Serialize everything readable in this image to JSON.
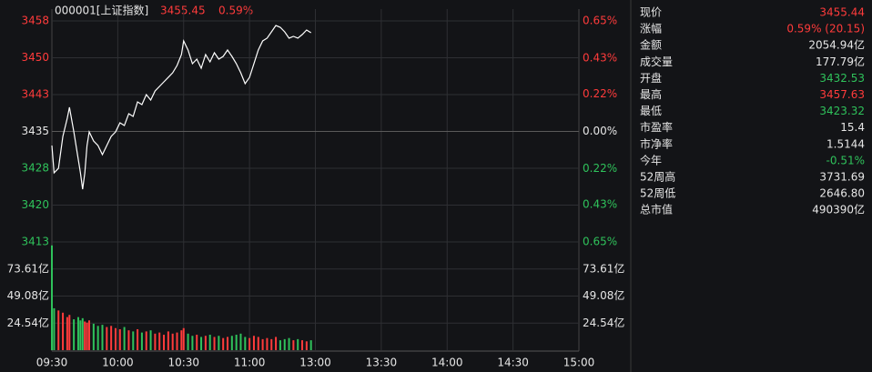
{
  "chart_data": {
    "type": "intraday",
    "header": {
      "name": "000001[上证指数]",
      "price": "3455.45",
      "change": "0.59%"
    },
    "x": [
      0,
      1,
      3,
      5,
      7,
      8,
      10,
      12,
      13,
      14,
      15,
      16,
      17,
      19,
      21,
      23,
      25,
      27,
      29,
      31,
      33,
      35,
      37,
      39,
      41,
      43,
      45,
      47,
      49,
      51,
      53,
      55,
      57,
      59,
      60,
      62,
      64,
      66,
      68,
      70,
      72,
      74,
      76,
      78,
      80,
      82,
      84,
      86,
      88,
      90,
      92,
      94,
      96,
      98,
      100,
      102,
      104,
      106,
      108,
      110,
      112,
      114,
      116,
      118
    ],
    "xlim": [
      0,
      240
    ],
    "xticks": [
      {
        "value": 0,
        "label": "09:30"
      },
      {
        "value": 30,
        "label": "10:00"
      },
      {
        "value": 60,
        "label": "10:30"
      },
      {
        "value": 90,
        "label": "11:00"
      },
      {
        "value": 120,
        "label": "13:00"
      },
      {
        "value": 150,
        "label": "13:30"
      },
      {
        "value": 180,
        "label": "14:00"
      },
      {
        "value": 210,
        "label": "14:30"
      },
      {
        "value": 240,
        "label": "15:00"
      }
    ],
    "series": [
      {
        "name": "price",
        "color": "#ffffff",
        "values": [
          3432.44,
          3426.93,
          3427.84,
          3434.28,
          3437.95,
          3440.16,
          3435.2,
          3429.68,
          3426.93,
          3423.62,
          3426.93,
          3432.44,
          3435.2,
          3433.36,
          3432.44,
          3430.6,
          3432.44,
          3434.28,
          3435.2,
          3437.03,
          3436.48,
          3438.87,
          3438.32,
          3441.26,
          3440.71,
          3442.73,
          3441.63,
          3443.47,
          3444.39,
          3445.31,
          3446.22,
          3447.14,
          3448.61,
          3450.82,
          3453.58,
          3451.74,
          3448.98,
          3449.9,
          3448.06,
          3450.82,
          3449.35,
          3451.19,
          3449.9,
          3450.45,
          3451.74,
          3450.45,
          3448.98,
          3447.14,
          3444.94,
          3446.22,
          3448.98,
          3451.74,
          3453.58,
          3454.13,
          3455.41,
          3456.7,
          3456.33,
          3455.41,
          3454.13,
          3454.5,
          3454.13,
          3454.86,
          3455.78,
          3455.23
        ]
      },
      {
        "name": "volume",
        "axis": "vol",
        "values": [
          95,
          38,
          36,
          34,
          30,
          32,
          28,
          30,
          27,
          29,
          26,
          25,
          27,
          24,
          22,
          23,
          21,
          22,
          20,
          19,
          21,
          18,
          17,
          19,
          16,
          17,
          18,
          15,
          16,
          14,
          17,
          15,
          16,
          18,
          20,
          15,
          13,
          14,
          12,
          13,
          14,
          12,
          13,
          11,
          12,
          13,
          14,
          15,
          12,
          11,
          13,
          12,
          10,
          11,
          10,
          12,
          9,
          10,
          11,
          9,
          10,
          9,
          8,
          9
        ]
      }
    ],
    "ylim": [
      3412.96,
      3457.62
    ],
    "yticks": [
      {
        "value": 3457.62,
        "label": "3458"
      },
      {
        "value": 3450.17,
        "label": "3450"
      },
      {
        "value": 3442.73,
        "label": "3443"
      },
      {
        "value": 3435.29,
        "label": "3435"
      },
      {
        "value": 3427.85,
        "label": "3428"
      },
      {
        "value": 3420.41,
        "label": "3420"
      },
      {
        "value": 3412.96,
        "label": "3413"
      }
    ],
    "y2lim": [
      -0.65,
      0.65
    ],
    "y2ticks": [
      {
        "value": 0.65,
        "label": "0.65%"
      },
      {
        "value": 0.43,
        "label": "0.43%"
      },
      {
        "value": 0.22,
        "label": "0.22%"
      },
      {
        "value": 0,
        "label": "0.00%"
      },
      {
        "value": -0.22,
        "label": "0.22%"
      },
      {
        "value": -0.43,
        "label": "0.43%"
      },
      {
        "value": -0.65,
        "label": "0.65%"
      }
    ],
    "vollim": [
      0,
      98.16
    ],
    "volticks": [
      {
        "value": 24.54,
        "label": "24.54亿"
      },
      {
        "value": 49.08,
        "label": "49.08亿"
      },
      {
        "value": 73.61,
        "label": "73.61亿"
      }
    ],
    "up_color": "#ff3b3b",
    "down_color": "#2fc25b",
    "grid": true
  },
  "quote_panel": {
    "rows": [
      {
        "label": "现价",
        "value": "3455.44",
        "color": "#ff3b3b"
      },
      {
        "label": "涨幅",
        "value": "0.59% (20.15)",
        "color": "#ff3b3b"
      },
      {
        "label": "金额",
        "value": "2054.94亿",
        "color": "#e6e6e6"
      },
      {
        "label": "成交量",
        "value": "177.79亿",
        "color": "#e6e6e6"
      },
      {
        "label": "开盘",
        "value": "3432.53",
        "color": "#2fc25b"
      },
      {
        "label": "最高",
        "value": "3457.63",
        "color": "#ff3b3b"
      },
      {
        "label": "最低",
        "value": "3423.32",
        "color": "#2fc25b"
      },
      {
        "label": "市盈率",
        "value": "15.4",
        "color": "#e6e6e6"
      },
      {
        "label": "市净率",
        "value": "1.5144",
        "color": "#e6e6e6"
      },
      {
        "label": "今年",
        "value": "-0.51%",
        "color": "#2fc25b"
      },
      {
        "label": "52周高",
        "value": "3731.69",
        "color": "#e6e6e6"
      },
      {
        "label": "52周低",
        "value": "2646.80",
        "color": "#e6e6e6"
      },
      {
        "label": "总市值",
        "value": "490390亿",
        "color": "#e6e6e6"
      }
    ]
  }
}
